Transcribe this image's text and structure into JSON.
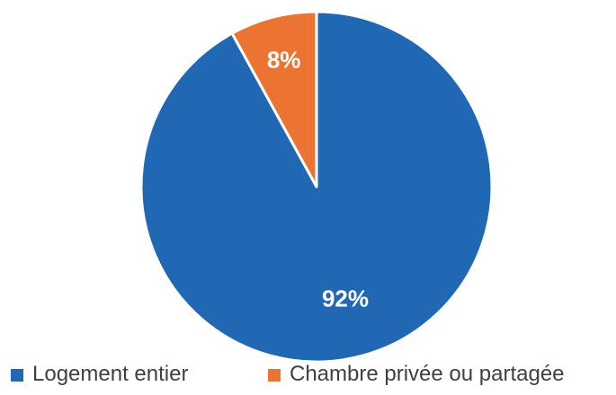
{
  "chart_data": {
    "type": "pie",
    "categories": [
      "Logement entier",
      "Chambre privée ou partagée"
    ],
    "values": [
      92,
      8
    ],
    "labels": [
      "92%",
      "8%"
    ],
    "colors": [
      "#2068B4",
      "#EB7432"
    ],
    "legend_position": "bottom"
  }
}
